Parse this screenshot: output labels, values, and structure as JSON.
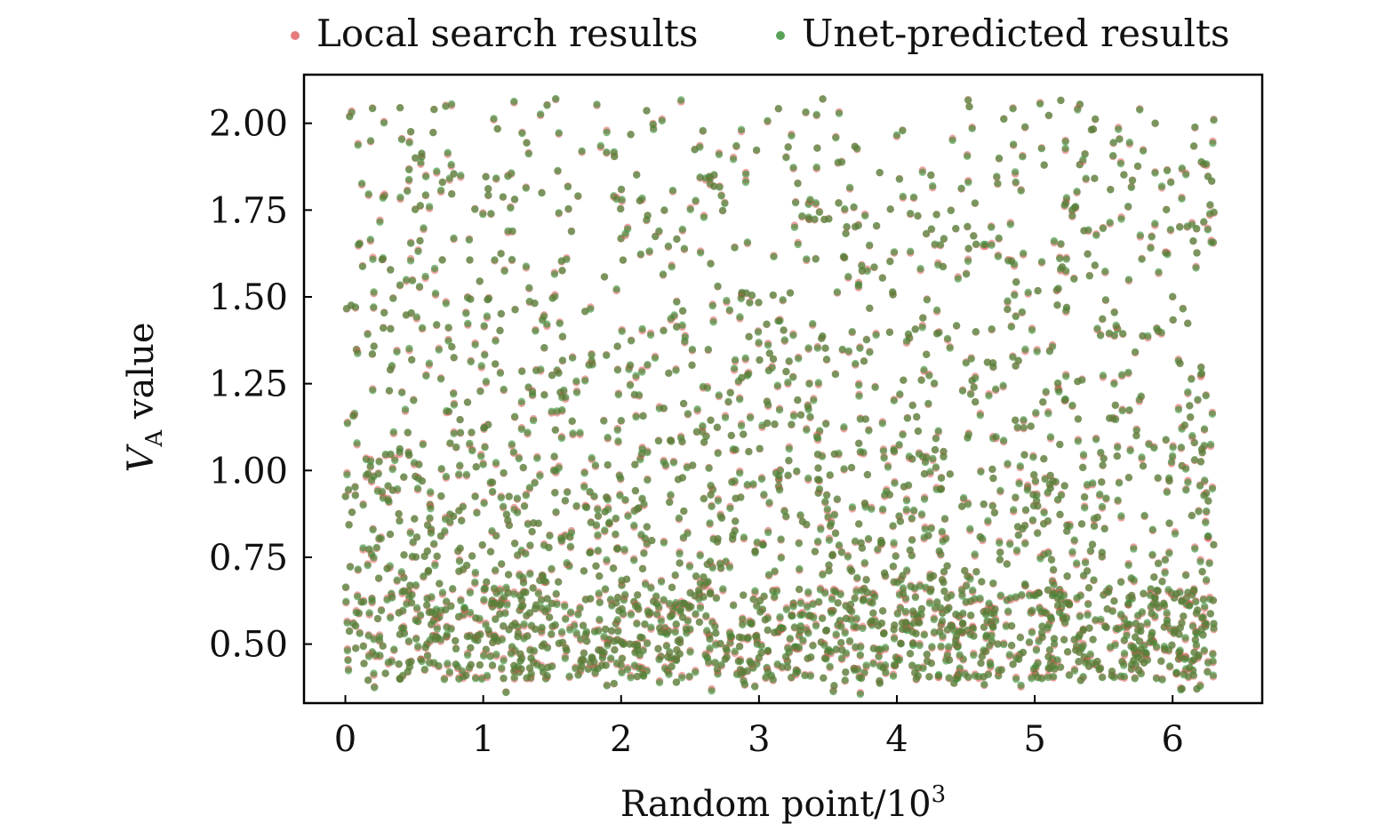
{
  "chart_data": {
    "type": "scatter",
    "title": "",
    "xlabel_main": "Random point/10",
    "xlabel_sup": "3",
    "ylabel_var": "V",
    "ylabel_sub": "A",
    "ylabel_rest": " value",
    "xlim": [
      -0.3,
      6.65
    ],
    "ylim": [
      0.33,
      2.14
    ],
    "x_ticks": [
      0,
      1,
      2,
      3,
      4,
      5,
      6
    ],
    "x_tick_labels": [
      "0",
      "1",
      "2",
      "3",
      "4",
      "5",
      "6"
    ],
    "y_ticks": [
      0.5,
      0.75,
      1.0,
      1.25,
      1.5,
      1.75,
      2.0
    ],
    "y_tick_labels": [
      "0.50",
      "0.75",
      "1.00",
      "1.25",
      "1.50",
      "1.75",
      "2.00"
    ],
    "legend_position": "top, outside plot",
    "grid": false,
    "series": [
      {
        "name": "Local search results",
        "color": "#e05a5a",
        "point_count": 6300,
        "x_range": [
          0,
          6.3
        ],
        "distribution": "dense band 0.40-0.65, tapering density up to 2.07; minimum about 0.36"
      },
      {
        "name": "Unet-predicted results",
        "color": "#2e8b2e",
        "point_count": 6300,
        "x_range": [
          0,
          6.3
        ],
        "distribution": "overlaps the local search results almost exactly"
      }
    ]
  }
}
